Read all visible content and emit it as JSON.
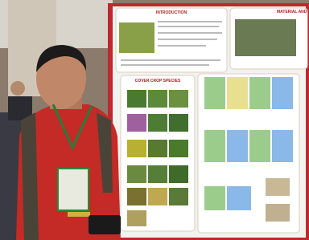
{
  "poster": {
    "sections": [
      {
        "heading": "INTRODUCTION"
      },
      {
        "heading": "COVER CROP SPECIES"
      },
      {
        "heading": "MATERIAL AND"
      }
    ]
  }
}
